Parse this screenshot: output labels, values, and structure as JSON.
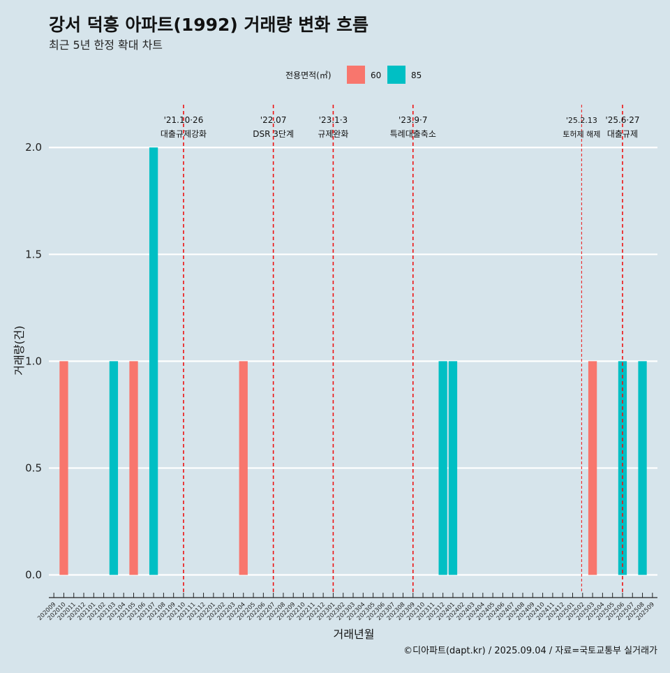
{
  "chart_data": {
    "type": "bar",
    "title": "강서 덕흥 아파트(1992) 거래량 변화 흐름",
    "subtitle": "최근 5년 한정 확대 차트",
    "xlabel": "거래년월",
    "ylabel": "거래량(건)",
    "ylim": [
      -0.08,
      2.2
    ],
    "yticks": [
      0.0,
      0.5,
      1.0,
      1.5,
      2.0
    ],
    "ytick_labels": [
      "0.0",
      "0.5",
      "1.0",
      "1.5",
      "2.0"
    ],
    "grid": true,
    "legend": {
      "title": "전용면적(㎡)",
      "placement": "top",
      "entries": [
        {
          "name": "60",
          "color": "#f8766d"
        },
        {
          "name": "85",
          "color": "#00bfc4"
        }
      ]
    },
    "categories": [
      "202009",
      "202010",
      "202011",
      "202012",
      "202101",
      "202102",
      "202103",
      "202104",
      "202105",
      "202106",
      "202107",
      "202108",
      "202109",
      "202110",
      "202111",
      "202112",
      "202201",
      "202202",
      "202203",
      "202204",
      "202205",
      "202206",
      "202207",
      "202208",
      "202209",
      "202210",
      "202211",
      "202212",
      "202301",
      "202302",
      "202303",
      "202304",
      "202305",
      "202306",
      "202307",
      "202308",
      "202309",
      "202310",
      "202311",
      "202312",
      "202401",
      "202402",
      "202403",
      "202404",
      "202405",
      "202406",
      "202407",
      "202408",
      "202409",
      "202410",
      "202411",
      "202412",
      "202501",
      "202502",
      "202503",
      "202504",
      "202505",
      "202506",
      "202507",
      "202508",
      "202509"
    ],
    "series": [
      {
        "name": "60",
        "color": "#f8766d",
        "points": [
          {
            "x": "202010",
            "y": 1
          },
          {
            "x": "202105",
            "y": 1
          },
          {
            "x": "202204",
            "y": 1
          },
          {
            "x": "202503",
            "y": 1
          }
        ]
      },
      {
        "name": "85",
        "color": "#00bfc4",
        "points": [
          {
            "x": "202103",
            "y": 1
          },
          {
            "x": "202107",
            "y": 2
          },
          {
            "x": "202312",
            "y": 1
          },
          {
            "x": "202401",
            "y": 1
          },
          {
            "x": "202506",
            "y": 1
          },
          {
            "x": "202508",
            "y": 1
          }
        ]
      }
    ],
    "annotations": [
      {
        "x": "202110",
        "date": "'21.10·26",
        "label": "대출규제강화"
      },
      {
        "x": "202207",
        "date": "'22.07",
        "label": "DSR 3단계"
      },
      {
        "x": "202301",
        "date": "'23.1·3",
        "label": "규제완화"
      },
      {
        "x": "202309",
        "date": "'23.9·7",
        "label": "특례대출축소"
      },
      {
        "x": "202502",
        "date": "'25.2.13",
        "label": "토허제 해제"
      },
      {
        "x": "202506",
        "date": "'25.6·27",
        "label": "대출규제"
      }
    ],
    "caption": "©디아파트(dapt.kr) / 2025.09.04 / 자료=국토교통부 실거래가"
  }
}
